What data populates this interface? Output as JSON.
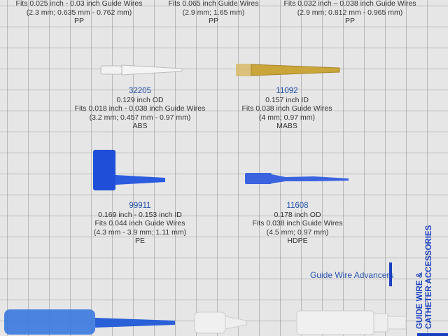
{
  "top_row": [
    {
      "lines": [
        "Fits 0.025 inch - 0.03 inch Guide Wires",
        "(2.3 mm; 0.635 mm - 0.762 mm)",
        "PP"
      ]
    },
    {
      "lines": [
        "Fits 0.065 inch Guide Wires",
        "(2.9 mm; 1.65 mm)",
        "PP"
      ]
    },
    {
      "lines": [
        "Fits 0.032 inch – 0.038 inch Guide Wires",
        "(2.9 mm; 0.812 mm - 0.965  mm)",
        "PP"
      ]
    }
  ],
  "products": [
    {
      "part": "32205",
      "size": "0.129 inch OD",
      "fits": "Fits 0.018 inch - 0.038 inch Guide Wires",
      "metric": "(3.2 mm; 0.457 mm - 0.97 mm)",
      "material": "ABS"
    },
    {
      "part": "11092",
      "size": "0.157 inch ID",
      "fits": "Fits 0.038 inch Guide Wires",
      "metric": "(4 mm; 0.97 mm)",
      "material": "MABS"
    },
    {
      "part": "99911",
      "size": "0.169 inch - 0.153 inch ID",
      "fits": "Fits 0.044 inch Guide Wires",
      "metric": "(4.3 mm - 3.9 mm; 1.11 mm)",
      "material": "PE"
    },
    {
      "part": "11608",
      "size": "0.178 inch OD",
      "fits": "Fits 0.038 inch Guide Wires",
      "metric": "(4.5 mm; 0.97 mm)",
      "material": "HDPE"
    }
  ],
  "section_label": "Guide Wire Advancers",
  "side_tab": {
    "line1": "GUIDE WIRE &",
    "line2": "CATHETER  ACCESSORIES"
  },
  "colors": {
    "accent": "#1a3fc0",
    "part_number": "#1e4fa8"
  }
}
